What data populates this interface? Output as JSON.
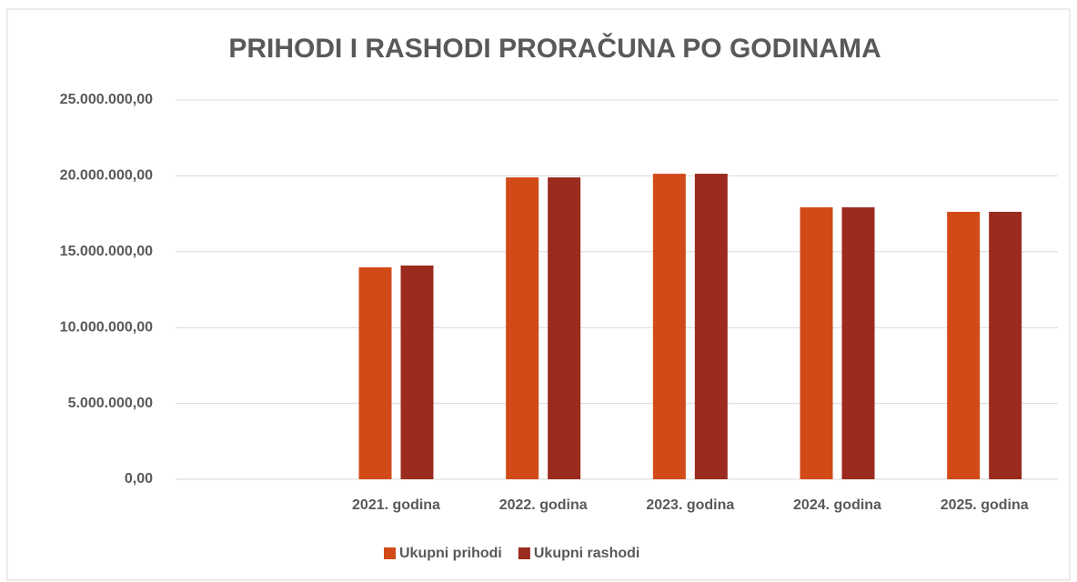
{
  "chart_data": {
    "type": "bar",
    "title": "PRIHODI I RASHODI PRORAČUNA PO GODINAMA",
    "categories": [
      null,
      "2021. godina",
      "2022. godina",
      "2023. godina",
      "2024. godina",
      "2025. godina"
    ],
    "series": [
      {
        "name": "Ukupni prihodi",
        "color": "#d24a18",
        "values": [
          null,
          13970000,
          19900000,
          20140000,
          17930000,
          17630000
        ]
      },
      {
        "name": "Ukupni rashodi",
        "color": "#9b2b1f",
        "values": [
          null,
          14090000,
          19900000,
          20140000,
          17930000,
          17630000
        ]
      }
    ],
    "ylim": [
      0,
      25000000
    ],
    "yticks": [
      {
        "value": 0,
        "label": "0,00"
      },
      {
        "value": 5000000,
        "label": "5.000.000,00"
      },
      {
        "value": 10000000,
        "label": "10.000.000,00"
      },
      {
        "value": 15000000,
        "label": "15.000.000,00"
      },
      {
        "value": 20000000,
        "label": "20.000.000,00"
      },
      {
        "value": 25000000,
        "label": "25.000.000,00"
      }
    ],
    "grid": true,
    "legend": "bottom"
  }
}
